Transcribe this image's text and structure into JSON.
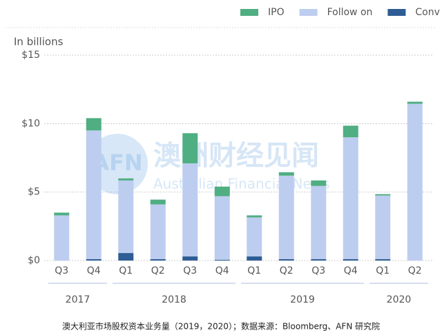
{
  "chart_data": {
    "type": "bar",
    "stacked": true,
    "y_label": "In billions",
    "years": [
      {
        "name": "2017",
        "quarters": [
          "Q3",
          "Q4"
        ]
      },
      {
        "name": "2018",
        "quarters": [
          "Q1",
          "Q2",
          "Q3",
          "Q4"
        ]
      },
      {
        "name": "2019",
        "quarters": [
          "Q1",
          "Q2",
          "Q3",
          "Q4"
        ]
      },
      {
        "name": "2020",
        "quarters": [
          "Q1",
          "Q2"
        ]
      }
    ],
    "series": [
      {
        "name": "Conv",
        "color": "#2e5c94",
        "values": [
          0,
          0.1,
          0.55,
          0.1,
          0.3,
          0.05,
          0.3,
          0.1,
          0.1,
          0.1,
          0.1,
          0
        ]
      },
      {
        "name": "Follow on",
        "color": "#bccdef",
        "values": [
          3.3,
          9.4,
          5.3,
          4.0,
          6.8,
          4.65,
          2.85,
          6.1,
          5.35,
          8.9,
          4.65,
          11.45
        ]
      },
      {
        "name": "IPO",
        "color": "#4fae82",
        "values": [
          0.2,
          0.9,
          0.15,
          0.35,
          2.2,
          0.7,
          0.15,
          0.25,
          0.4,
          0.85,
          0.1,
          0.15
        ]
      }
    ],
    "legend_order": [
      2,
      1,
      0
    ],
    "ylim": [
      0,
      15
    ],
    "yticks": [
      {
        "value": 0,
        "label": "$0"
      },
      {
        "value": 5,
        "label": "$5"
      },
      {
        "value": 10,
        "label": "$10"
      },
      {
        "value": 15,
        "label": "$15"
      }
    ],
    "grid": true,
    "watermark": {
      "logo": "AFN",
      "name": "澳洲财经见闻",
      "subtitle": "Australian Financial News"
    },
    "caption": "澳大利亚市场股权资本业务量（2019，2020）；数据来源：Bloomberg、AFN 研究院"
  }
}
